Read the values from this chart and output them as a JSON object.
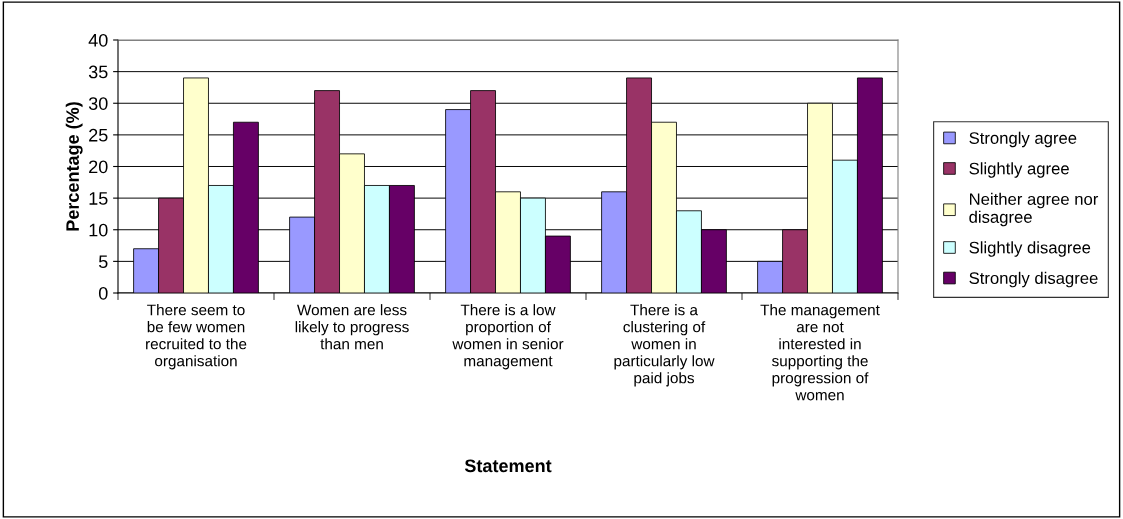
{
  "chart_data": {
    "type": "bar",
    "xlabel": "Statement",
    "ylabel": "Percentage (%)",
    "categories": [
      "There seem to\nbe few women\nrecruited to the\norganisation",
      "Women are less\nlikely to progress\nthan men",
      "There is a low\nproportion of\nwomen in senior\nmanagement",
      "There is a\nclustering of\nwomen in\nparticularly low\npaid jobs",
      "The management\nare not\ninterested in\nsupporting the\nprogression of\nwomen"
    ],
    "series": [
      {
        "name": "Strongly agree",
        "color": "#9999ff",
        "values": [
          7,
          12,
          29,
          16,
          5
        ]
      },
      {
        "name": "Slightly agree",
        "color": "#993366",
        "values": [
          15,
          32,
          32,
          34,
          10
        ]
      },
      {
        "name": "Neither agree nor\ndisagree",
        "color": "#ffffcc",
        "values": [
          34,
          22,
          16,
          27,
          30
        ]
      },
      {
        "name": "Slightly disagree",
        "color": "#ccffff",
        "values": [
          17,
          17,
          15,
          13,
          21
        ]
      },
      {
        "name": "Strongly disagree",
        "color": "#660066",
        "values": [
          27,
          17,
          9,
          10,
          34
        ]
      }
    ],
    "ylim": [
      0,
      40
    ],
    "yticks": [
      0,
      5,
      10,
      15,
      20,
      25,
      30,
      35,
      40
    ],
    "grid": "y",
    "legend": "right"
  }
}
